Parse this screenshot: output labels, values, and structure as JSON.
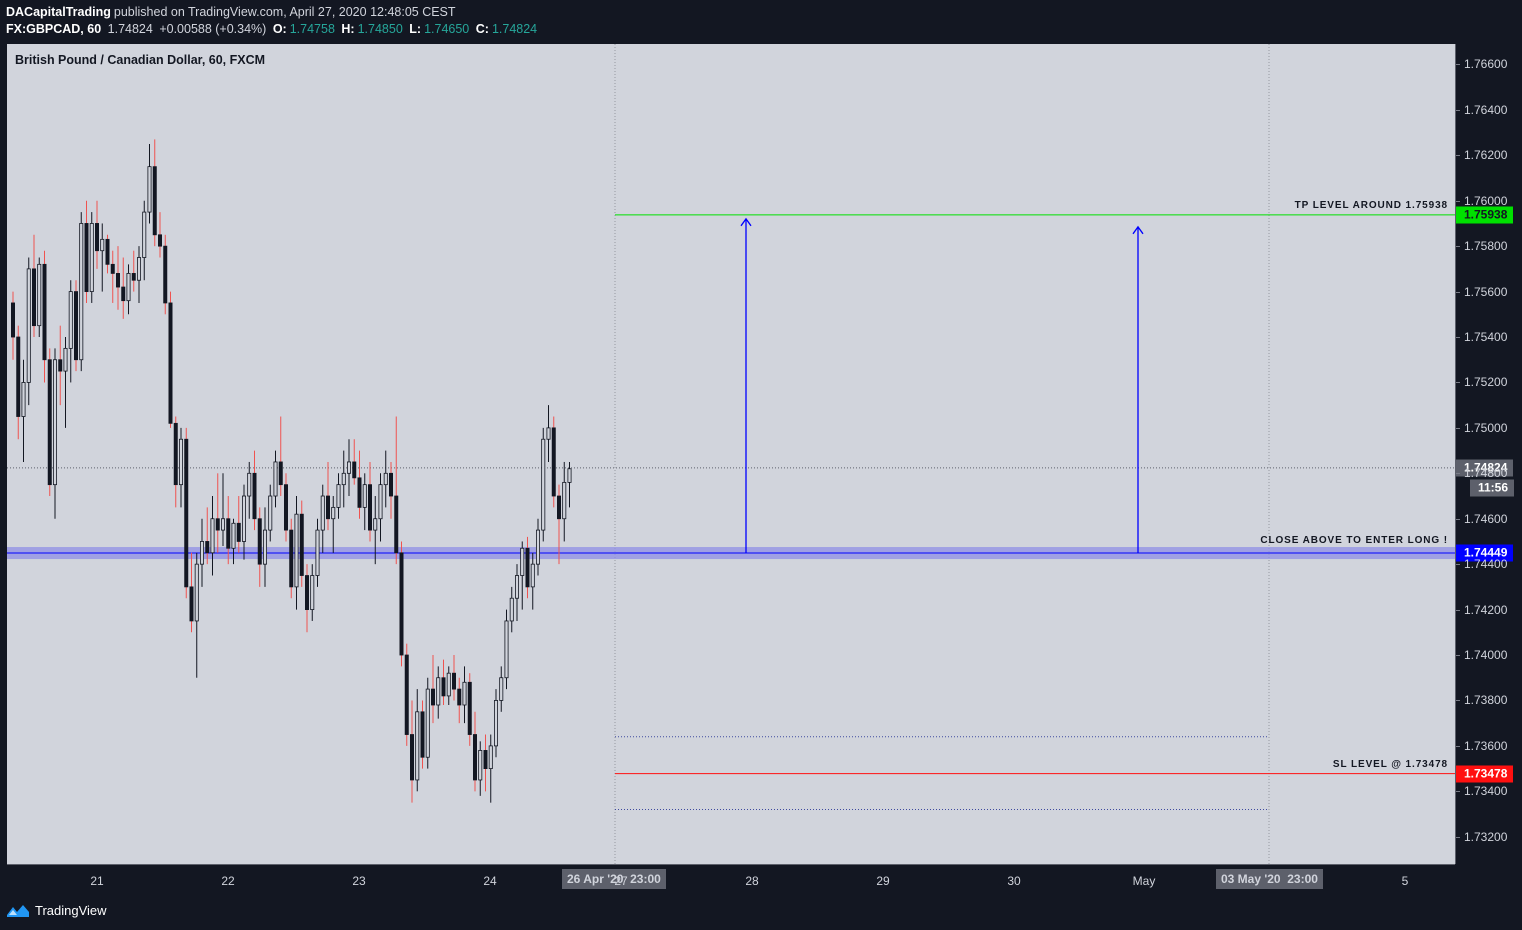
{
  "header": {
    "author": "DACapitalTrading",
    "published_text": "published on TradingView.com, April 27, 2020 12:48:05 CEST",
    "symbol": "FX:GBPCAD, 60",
    "last": "1.74824",
    "change": "+0.00588 (+0.34%)",
    "open_label": "O:",
    "open": "1.74758",
    "high_label": "H:",
    "high": "1.74850",
    "low_label": "L:",
    "low": "1.74650",
    "close_label": "C:",
    "close": "1.74824"
  },
  "chart_title": "British Pound / Canadian Dollar, 60, FXCM",
  "footer": {
    "brand": "TradingView",
    "logo_icon": "tradingview-logo-icon"
  },
  "colors": {
    "background": "#d1d4dc",
    "up": "#131722",
    "down": "#131722",
    "wick_down": "#ef5350",
    "tp": "#00e000",
    "sl": "#ff1010",
    "entry": "#0000ff",
    "entry_band": "#8f8fe6"
  },
  "chart_data": {
    "type": "candlestick",
    "title": "British Pound / Canadian Dollar, 60, FXCM",
    "ylim": [
      1.731,
      1.767
    ],
    "y_ticks": [
      "1.76600",
      "1.76400",
      "1.76200",
      "1.76000",
      "1.75800",
      "1.75600",
      "1.75400",
      "1.75200",
      "1.75000",
      "1.74800",
      "1.74600",
      "1.74400",
      "1.74200",
      "1.74000",
      "1.73800",
      "1.73600",
      "1.73400",
      "1.73200"
    ],
    "x_ticks": [
      "21",
      "22",
      "23",
      "24",
      "27",
      "28",
      "29",
      "30",
      "May",
      "5"
    ],
    "x_highlight_labels": [
      "26 Apr '20",
      "03 May '20",
      "23:00"
    ],
    "levels": {
      "tp": {
        "value": 1.75938,
        "label": "1.75938",
        "text": "TP LEVEL AROUND 1.75938"
      },
      "entry": {
        "value": 1.74449,
        "label": "1.74449",
        "text": "CLOSE ABOVE TO ENTER LONG !"
      },
      "sl": {
        "value": 1.73478,
        "label": "1.73478",
        "text": "SL LEVEL @ 1.73478"
      },
      "last": {
        "value": 1.74824,
        "label": "1.74824",
        "countdown": "11:56"
      }
    },
    "dotted_levels": [
      1.7364,
      1.7332
    ],
    "candles": [
      [
        1.7555,
        1.756,
        1.753,
        1.754
      ],
      [
        1.754,
        1.7545,
        1.7495,
        1.7505
      ],
      [
        1.7505,
        1.753,
        1.7485,
        1.752
      ],
      [
        1.752,
        1.7575,
        1.751,
        1.757
      ],
      [
        1.757,
        1.7585,
        1.754,
        1.7545
      ],
      [
        1.7545,
        1.7575,
        1.754,
        1.7572
      ],
      [
        1.7572,
        1.7578,
        1.752,
        1.753
      ],
      [
        1.753,
        1.7535,
        1.747,
        1.7475
      ],
      [
        1.7475,
        1.7535,
        1.746,
        1.753
      ],
      [
        1.753,
        1.7545,
        1.751,
        1.7525
      ],
      [
        1.7525,
        1.754,
        1.75,
        1.7535
      ],
      [
        1.7535,
        1.7565,
        1.752,
        1.756
      ],
      [
        1.756,
        1.7565,
        1.7525,
        1.753
      ],
      [
        1.753,
        1.7595,
        1.7525,
        1.759
      ],
      [
        1.759,
        1.76,
        1.7555,
        1.756
      ],
      [
        1.756,
        1.7595,
        1.7555,
        1.759
      ],
      [
        1.759,
        1.76,
        1.757,
        1.7578
      ],
      [
        1.7578,
        1.759,
        1.756,
        1.7583
      ],
      [
        1.7583,
        1.7585,
        1.7568,
        1.7572
      ],
      [
        1.7572,
        1.7578,
        1.7555,
        1.7568
      ],
      [
        1.7568,
        1.758,
        1.7552,
        1.7562
      ],
      [
        1.7562,
        1.7575,
        1.7548,
        1.7556
      ],
      [
        1.7556,
        1.7572,
        1.755,
        1.7568
      ],
      [
        1.7568,
        1.7578,
        1.756,
        1.7565
      ],
      [
        1.7565,
        1.758,
        1.7555,
        1.7575
      ],
      [
        1.7575,
        1.76,
        1.7565,
        1.7595
      ],
      [
        1.7595,
        1.7625,
        1.759,
        1.7615
      ],
      [
        1.7615,
        1.7627,
        1.758,
        1.7585
      ],
      [
        1.7585,
        1.7595,
        1.7575,
        1.758
      ],
      [
        1.758,
        1.7585,
        1.755,
        1.7555
      ],
      [
        1.7555,
        1.756,
        1.75,
        1.7502
      ],
      [
        1.7502,
        1.7505,
        1.7465,
        1.7475
      ],
      [
        1.7475,
        1.75,
        1.7465,
        1.7495
      ],
      [
        1.7495,
        1.75,
        1.7425,
        1.743
      ],
      [
        1.743,
        1.7445,
        1.741,
        1.7415
      ],
      [
        1.7415,
        1.7445,
        1.739,
        1.744
      ],
      [
        1.744,
        1.746,
        1.743,
        1.745
      ],
      [
        1.745,
        1.7465,
        1.744,
        1.7445
      ],
      [
        1.7445,
        1.747,
        1.7435,
        1.746
      ],
      [
        1.746,
        1.748,
        1.7445,
        1.7455
      ],
      [
        1.7455,
        1.748,
        1.7448,
        1.746
      ],
      [
        1.746,
        1.747,
        1.744,
        1.7447
      ],
      [
        1.7447,
        1.746,
        1.744,
        1.7458
      ],
      [
        1.7458,
        1.747,
        1.7445,
        1.745
      ],
      [
        1.745,
        1.7475,
        1.7442,
        1.747
      ],
      [
        1.747,
        1.7485,
        1.746,
        1.748
      ],
      [
        1.748,
        1.749,
        1.7455,
        1.746
      ],
      [
        1.746,
        1.7465,
        1.743,
        1.744
      ],
      [
        1.744,
        1.7465,
        1.743,
        1.7455
      ],
      [
        1.7455,
        1.7475,
        1.745,
        1.747
      ],
      [
        1.747,
        1.749,
        1.7465,
        1.7485
      ],
      [
        1.7485,
        1.7505,
        1.747,
        1.7475
      ],
      [
        1.7475,
        1.748,
        1.745,
        1.7455
      ],
      [
        1.7455,
        1.746,
        1.7425,
        1.743
      ],
      [
        1.743,
        1.747,
        1.742,
        1.7462
      ],
      [
        1.7462,
        1.7468,
        1.743,
        1.7435
      ],
      [
        1.7435,
        1.744,
        1.741,
        1.742
      ],
      [
        1.742,
        1.744,
        1.7415,
        1.7435
      ],
      [
        1.7435,
        1.746,
        1.743,
        1.7455
      ],
      [
        1.7455,
        1.7475,
        1.7445,
        1.747
      ],
      [
        1.747,
        1.7485,
        1.7455,
        1.746
      ],
      [
        1.746,
        1.747,
        1.7445,
        1.7465
      ],
      [
        1.7465,
        1.748,
        1.746,
        1.7475
      ],
      [
        1.7475,
        1.749,
        1.7465,
        1.748
      ],
      [
        1.748,
        1.7495,
        1.747,
        1.7485
      ],
      [
        1.7485,
        1.7495,
        1.7475,
        1.7478
      ],
      [
        1.7478,
        1.749,
        1.746,
        1.7465
      ],
      [
        1.7465,
        1.748,
        1.7455,
        1.7475
      ],
      [
        1.7475,
        1.7485,
        1.745,
        1.7455
      ],
      [
        1.7455,
        1.747,
        1.744,
        1.746
      ],
      [
        1.746,
        1.748,
        1.745,
        1.7475
      ],
      [
        1.7475,
        1.749,
        1.7465,
        1.748
      ],
      [
        1.748,
        1.7485,
        1.746,
        1.747
      ],
      [
        1.747,
        1.7505,
        1.744,
        1.7445
      ],
      [
        1.7445,
        1.745,
        1.7395,
        1.74
      ],
      [
        1.74,
        1.7405,
        1.736,
        1.7365
      ],
      [
        1.7365,
        1.738,
        1.7335,
        1.7345
      ],
      [
        1.7345,
        1.7385,
        1.734,
        1.7375
      ],
      [
        1.7375,
        1.738,
        1.735,
        1.7355
      ],
      [
        1.7355,
        1.739,
        1.735,
        1.7385
      ],
      [
        1.7385,
        1.74,
        1.737,
        1.7378
      ],
      [
        1.7378,
        1.7395,
        1.7372,
        1.739
      ],
      [
        1.739,
        1.7398,
        1.7378,
        1.7382
      ],
      [
        1.7382,
        1.7395,
        1.7378,
        1.7392
      ],
      [
        1.7392,
        1.74,
        1.738,
        1.7385
      ],
      [
        1.7385,
        1.739,
        1.737,
        1.7378
      ],
      [
        1.7378,
        1.7395,
        1.737,
        1.7388
      ],
      [
        1.7388,
        1.7392,
        1.736,
        1.7365
      ],
      [
        1.7365,
        1.7375,
        1.734,
        1.7345
      ],
      [
        1.7345,
        1.7362,
        1.7338,
        1.7358
      ],
      [
        1.7358,
        1.7365,
        1.734,
        1.735
      ],
      [
        1.735,
        1.7365,
        1.7335,
        1.736
      ],
      [
        1.736,
        1.7385,
        1.7355,
        1.738
      ],
      [
        1.738,
        1.7395,
        1.7375,
        1.739
      ],
      [
        1.739,
        1.742,
        1.7385,
        1.7415
      ],
      [
        1.7415,
        1.743,
        1.741,
        1.7425
      ],
      [
        1.7425,
        1.744,
        1.7415,
        1.7435
      ],
      [
        1.7435,
        1.745,
        1.742,
        1.7447
      ],
      [
        1.7447,
        1.7452,
        1.7425,
        1.743
      ],
      [
        1.743,
        1.7445,
        1.742,
        1.744
      ],
      [
        1.744,
        1.746,
        1.7435,
        1.7455
      ],
      [
        1.7455,
        1.75,
        1.745,
        1.7495
      ],
      [
        1.7495,
        1.751,
        1.7485,
        1.75
      ],
      [
        1.75,
        1.7505,
        1.7465,
        1.747
      ],
      [
        1.747,
        1.7475,
        1.744,
        1.746
      ],
      [
        1.746,
        1.7485,
        1.745,
        1.7476
      ],
      [
        1.7476,
        1.7485,
        1.7465,
        1.7482
      ]
    ]
  }
}
